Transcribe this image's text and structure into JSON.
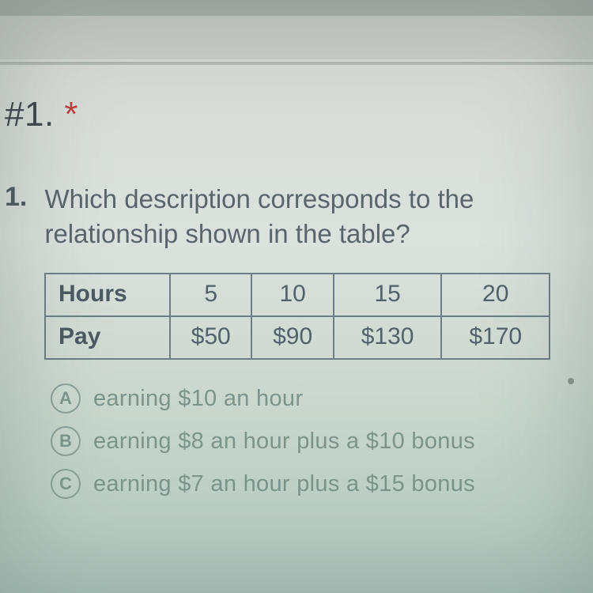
{
  "header": {
    "label": "#1.",
    "marker": "*"
  },
  "question": {
    "number": "1.",
    "text_line1": "Which description corresponds to the",
    "text_line2": "relationship shown in the table?"
  },
  "table": {
    "row1_header": "Hours",
    "row1": [
      "5",
      "10",
      "15",
      "20"
    ],
    "row2_header": "Pay",
    "row2": [
      "$50",
      "$90",
      "$130",
      "$170"
    ],
    "border_color": "#6d7e86",
    "cell_fontsize": 30
  },
  "choices": [
    {
      "letter": "A",
      "text": "earning $10 an hour"
    },
    {
      "letter": "B",
      "text": "earning $8 an hour plus a $10 bonus"
    },
    {
      "letter": "C",
      "text": "earning $7 an hour plus a $15 bonus"
    }
  ],
  "colors": {
    "bg_top": "#d6d8d4",
    "bg_bottom": "#b0c7bf",
    "text_primary": "#4f5a60",
    "text_faded": "#7c948d",
    "star": "#c04040"
  }
}
